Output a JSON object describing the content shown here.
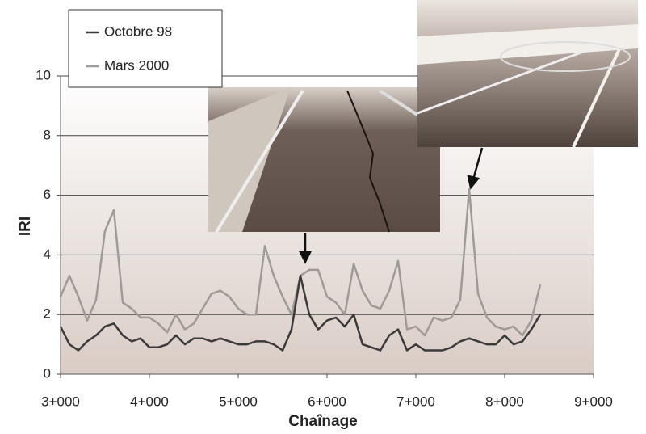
{
  "chart_data": {
    "type": "line",
    "xlabel": "Chaînage",
    "ylabel": "IRI",
    "x": [
      3000,
      3100,
      3200,
      3300,
      3400,
      3500,
      3600,
      3700,
      3800,
      3900,
      4000,
      4100,
      4200,
      4300,
      4400,
      4500,
      4600,
      4700,
      4800,
      4900,
      5000,
      5100,
      5200,
      5300,
      5400,
      5500,
      5600,
      5700,
      5800,
      5900,
      6000,
      6100,
      6200,
      6300,
      6400,
      6500,
      6600,
      6700,
      6800,
      6900,
      7000,
      7100,
      7200,
      7300,
      7400,
      7500,
      7600,
      7700,
      7800,
      7900,
      8000,
      8100,
      8200,
      8300,
      8400
    ],
    "series": [
      {
        "name": "Octobre 98",
        "color": "#3a3a3a",
        "values": [
          1.6,
          1.0,
          0.8,
          1.1,
          1.3,
          1.6,
          1.7,
          1.3,
          1.1,
          1.2,
          0.9,
          0.9,
          1.0,
          1.3,
          1.0,
          1.2,
          1.2,
          1.1,
          1.2,
          1.1,
          1.0,
          1.0,
          1.1,
          1.1,
          1.0,
          0.8,
          1.5,
          3.3,
          2.0,
          1.5,
          1.8,
          1.9,
          1.6,
          2.0,
          1.0,
          0.9,
          0.8,
          1.3,
          1.5,
          0.8,
          1.0,
          0.8,
          0.8,
          0.8,
          0.9,
          1.1,
          1.2,
          1.1,
          1.0,
          1.0,
          1.3,
          1.0,
          1.1,
          1.5,
          2.0
        ]
      },
      {
        "name": "Mars 2000",
        "color": "#a09a96",
        "values": [
          2.6,
          3.3,
          2.6,
          1.8,
          2.5,
          4.8,
          5.5,
          2.4,
          2.2,
          1.9,
          1.9,
          1.7,
          1.4,
          2.0,
          1.5,
          1.7,
          2.2,
          2.7,
          2.8,
          2.6,
          2.2,
          2.0,
          2.0,
          4.3,
          3.3,
          2.6,
          2.0,
          3.3,
          3.5,
          3.5,
          2.6,
          2.4,
          2.0,
          3.7,
          2.8,
          2.3,
          2.2,
          2.8,
          3.8,
          1.5,
          1.6,
          1.3,
          1.9,
          1.8,
          1.9,
          2.5,
          6.2,
          2.7,
          1.9,
          1.6,
          1.5,
          1.6,
          1.3,
          1.8,
          3.0
        ]
      }
    ],
    "xlim": [
      3000,
      9000
    ],
    "xticks": [
      {
        "value": 3000,
        "label": "3+000"
      },
      {
        "value": 4000,
        "label": "4+000"
      },
      {
        "value": 5000,
        "label": "5+000"
      },
      {
        "value": 6000,
        "label": "6+000"
      },
      {
        "value": 7000,
        "label": "7+000"
      },
      {
        "value": 8000,
        "label": "8+000"
      },
      {
        "value": 9000,
        "label": "9+000"
      }
    ],
    "ylim": [
      0,
      10
    ],
    "yticks": [
      0,
      2,
      4,
      6,
      8,
      10
    ],
    "grid": true
  }
}
